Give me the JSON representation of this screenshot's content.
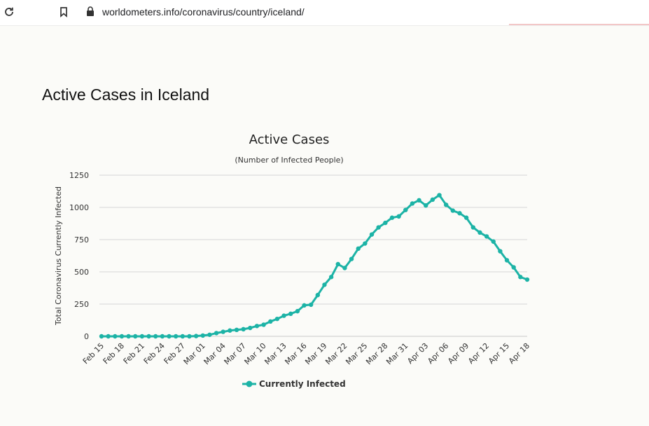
{
  "browser": {
    "url": "worldometers.info/coronavirus/country/iceland/",
    "reload_icon": "reload-icon",
    "bookmark_icon": "bookmark-icon",
    "lock_icon": "lock-icon"
  },
  "page": {
    "heading": "Active Cases in Iceland"
  },
  "colors": {
    "series": "#1cb3a6",
    "grid": "#d6d6d6",
    "axis_text": "#333333"
  },
  "chart_data": {
    "type": "line",
    "title": "Active Cases",
    "subtitle": "(Number of Infected People)",
    "xlabel": "",
    "ylabel": "Total Coronavirus Currently Infected",
    "ylim": [
      0,
      1250
    ],
    "yticks": [
      0,
      250,
      500,
      750,
      1000,
      1250
    ],
    "legend_position": "bottom-center",
    "grid": true,
    "categories": [
      "Feb 15",
      "Feb 16",
      "Feb 17",
      "Feb 18",
      "Feb 19",
      "Feb 20",
      "Feb 21",
      "Feb 22",
      "Feb 23",
      "Feb 24",
      "Feb 25",
      "Feb 26",
      "Feb 27",
      "Feb 28",
      "Feb 29",
      "Mar 01",
      "Mar 02",
      "Mar 03",
      "Mar 04",
      "Mar 05",
      "Mar 06",
      "Mar 07",
      "Mar 08",
      "Mar 09",
      "Mar 10",
      "Mar 11",
      "Mar 12",
      "Mar 13",
      "Mar 14",
      "Mar 15",
      "Mar 16",
      "Mar 17",
      "Mar 18",
      "Mar 19",
      "Mar 20",
      "Mar 21",
      "Mar 22",
      "Mar 23",
      "Mar 24",
      "Mar 25",
      "Mar 26",
      "Mar 27",
      "Mar 28",
      "Mar 29",
      "Mar 30",
      "Mar 31",
      "Apr 01",
      "Apr 02",
      "Apr 03",
      "Apr 04",
      "Apr 05",
      "Apr 06",
      "Apr 07",
      "Apr 08",
      "Apr 09",
      "Apr 10",
      "Apr 11",
      "Apr 12",
      "Apr 13",
      "Apr 14",
      "Apr 15",
      "Apr 16",
      "Apr 17",
      "Apr 18"
    ],
    "tick_labels": [
      "Feb 15",
      "Feb 18",
      "Feb 21",
      "Feb 24",
      "Feb 27",
      "Mar 01",
      "Mar 04",
      "Mar 07",
      "Mar 10",
      "Mar 13",
      "Mar 16",
      "Mar 19",
      "Mar 22",
      "Mar 25",
      "Mar 28",
      "Mar 31",
      "Apr 03",
      "Apr 06",
      "Apr 09",
      "Apr 12",
      "Apr 15",
      "Apr 18"
    ],
    "series": [
      {
        "name": "Currently Infected",
        "values": [
          0,
          0,
          0,
          0,
          0,
          0,
          0,
          0,
          0,
          0,
          0,
          0,
          0,
          0,
          2,
          6,
          12,
          25,
          35,
          45,
          50,
          55,
          65,
          80,
          90,
          115,
          135,
          160,
          175,
          195,
          240,
          245,
          320,
          400,
          460,
          560,
          530,
          600,
          680,
          720,
          790,
          845,
          880,
          920,
          930,
          980,
          1030,
          1055,
          1015,
          1060,
          1095,
          1020,
          975,
          955,
          920,
          845,
          805,
          775,
          735,
          660,
          590,
          535,
          460,
          440
        ]
      }
    ]
  },
  "legend": {
    "label": "Currently Infected"
  }
}
